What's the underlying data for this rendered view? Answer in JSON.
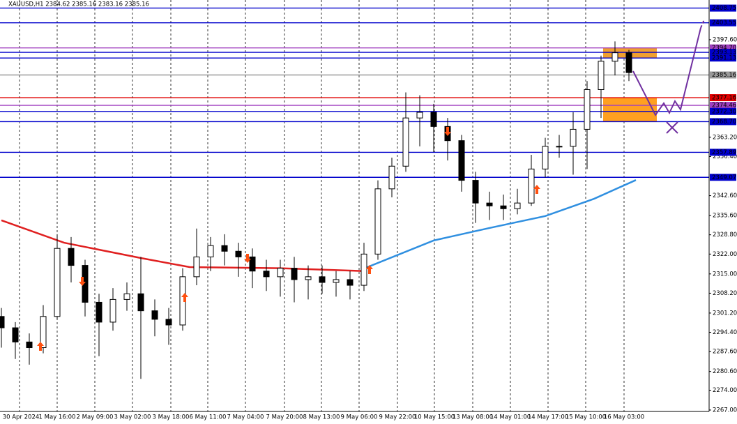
{
  "chart_data": {
    "type": "candlestick",
    "title": "XAUUSD,H1  2384.62 2385.16 2383.16 2385.16",
    "x": [
      0,
      1,
      2,
      3,
      4,
      5,
      6,
      7,
      8,
      9,
      10,
      11,
      12,
      13,
      14,
      15,
      16,
      17,
      18,
      19,
      20,
      21,
      22,
      23,
      24,
      25,
      26,
      27,
      28,
      29,
      30,
      31,
      32,
      33,
      34,
      35,
      36,
      37,
      38,
      39,
      40,
      41,
      42,
      43,
      44,
      45
    ],
    "open": [
      2300,
      2296,
      2291,
      2289,
      2300,
      2324,
      2318,
      2305,
      2298,
      2306,
      2308,
      2302,
      2299,
      2297,
      2314,
      2321,
      2325,
      2323,
      2321,
      2316,
      2314,
      2317,
      2313,
      2314,
      2312,
      2313,
      2311,
      2322,
      2345,
      2353,
      2370,
      2372,
      2367,
      2362,
      2348,
      2340,
      2339,
      2338,
      2340,
      2352,
      2360,
      2360,
      2366,
      2380,
      2390,
      2393
    ],
    "high": [
      2303,
      2298,
      2294,
      2304,
      2329,
      2328,
      2320,
      2308,
      2310,
      2312,
      2321,
      2306,
      2303,
      2317,
      2331,
      2328,
      2329,
      2326,
      2324,
      2320,
      2320,
      2321,
      2318,
      2318,
      2316,
      2316,
      2326,
      2348,
      2356,
      2379,
      2378,
      2375,
      2370,
      2364,
      2351,
      2344,
      2343,
      2345,
      2357,
      2363,
      2364,
      2372,
      2383,
      2392,
      2397,
      2394
    ],
    "low": [
      2289,
      2285,
      2283,
      2287,
      2299,
      2312,
      2300,
      2286,
      2295,
      2302,
      2278,
      2293,
      2290,
      2295,
      2311,
      2316,
      2318,
      2314,
      2310,
      2309,
      2307,
      2305,
      2306,
      2308,
      2307,
      2306,
      2309,
      2320,
      2342,
      2351,
      2360,
      2358,
      2355,
      2344,
      2333,
      2334,
      2334,
      2336,
      2339,
      2349,
      2356,
      2350,
      2352,
      2370,
      2385,
      2383
    ],
    "close": [
      2296,
      2291,
      2289,
      2300,
      2324,
      2318,
      2305,
      2298,
      2306,
      2308,
      2302,
      2299,
      2297,
      2314,
      2321,
      2325,
      2323,
      2321,
      2316,
      2314,
      2317,
      2313,
      2314,
      2312,
      2313,
      2311,
      2322,
      2345,
      2353,
      2370,
      2372,
      2367,
      2362,
      2348,
      2340,
      2339,
      2338,
      2340,
      2352,
      2360,
      2360,
      2366,
      2380,
      2390,
      2393,
      2386
    ],
    "up_color": "#ffffff",
    "down_color": "#000000",
    "xlim": [
      -0.1,
      50.75
    ],
    "ylim": [
      2266.5,
      2411.6
    ],
    "grid": "x",
    "xticks": [
      {
        "value": 1.3,
        "label": "30 Apr 2024"
      },
      {
        "value": 4.0,
        "label": "1 May 16:00"
      },
      {
        "value": 6.7,
        "label": "2 May 09:00"
      },
      {
        "value": 9.4,
        "label": "3 May 02:00"
      },
      {
        "value": 12.15,
        "label": "3 May 18:00"
      },
      {
        "value": 14.8,
        "label": "6 May 11:00"
      },
      {
        "value": 17.5,
        "label": "7 May 04:00"
      },
      {
        "value": 20.3,
        "label": "7 May 20:00"
      },
      {
        "value": 22.95,
        "label": "8 May 13:00"
      },
      {
        "value": 25.65,
        "label": "9 May 06:00"
      },
      {
        "value": 28.4,
        "label": "9 May 22:00"
      },
      {
        "value": 31.05,
        "label": "10 May 15:00"
      },
      {
        "value": 33.8,
        "label": "13 May 08:00"
      },
      {
        "value": 36.5,
        "label": "14 May 01:00"
      },
      {
        "value": 39.2,
        "label": "14 May 17:00"
      },
      {
        "value": 41.9,
        "label": "15 May 10:00"
      },
      {
        "value": 44.65,
        "label": "16 May 03:00"
      }
    ],
    "yticks": [
      {
        "value": 2397.6,
        "label": "2397.60"
      },
      {
        "value": 2363.2,
        "label": "2363.20"
      },
      {
        "value": 2356.4,
        "label": "2356.40"
      },
      {
        "value": 2342.6,
        "label": "2342.60"
      },
      {
        "value": 2335.6,
        "label": "2335.60"
      },
      {
        "value": 2328.8,
        "label": "2328.80"
      },
      {
        "value": 2322.0,
        "label": "2322.00"
      },
      {
        "value": 2315.0,
        "label": "2315.00"
      },
      {
        "value": 2308.2,
        "label": "2308.20"
      },
      {
        "value": 2301.2,
        "label": "2301.20"
      },
      {
        "value": 2294.4,
        "label": "2294.40"
      },
      {
        "value": 2287.6,
        "label": "2287.60"
      },
      {
        "value": 2280.6,
        "label": "2280.60"
      },
      {
        "value": 2274.0,
        "label": "2274.00"
      },
      {
        "value": 2267.0,
        "label": "2267.00"
      }
    ],
    "levels": [
      {
        "value": 2408.75,
        "color": "#0000cc"
      },
      {
        "value": 2403.55,
        "color": "#0000cc"
      },
      {
        "value": 2394.7,
        "label": "2394.70",
        "color": "#a040c0"
      },
      {
        "value": 2393.13,
        "color": "#0000cc"
      },
      {
        "value": 2391.13,
        "color": "#0000cc"
      },
      {
        "value": 2385.16,
        "color": "#999999"
      },
      {
        "value": 2377.16,
        "color": "#e00000"
      },
      {
        "value": 2374.46,
        "color": "#a040c0"
      },
      {
        "value": 2372.3,
        "label": "2372.30",
        "color": "#0000cc"
      },
      {
        "value": 2368.7,
        "label": "2368.70",
        "color": "#0000cc"
      },
      {
        "value": 2357.89,
        "color": "#0000cc"
      },
      {
        "value": 2349.07,
        "color": "#0000cc"
      }
    ],
    "zones": [
      {
        "from": 2391.13,
        "to": 2394.7,
        "x": [
          43.15,
          47.0
        ],
        "color": "#f0a030"
      },
      {
        "from": 2368.7,
        "to": 2377.16,
        "x": [
          43.15,
          47.0
        ],
        "color": "#ffa020"
      }
    ],
    "lines": [
      {
        "color": "#e02020",
        "x": [
          0,
          4.5,
          10,
          13.5,
          20,
          26
        ],
        "values": [
          2333.9,
          2326,
          2320.6,
          2317.4,
          2317,
          2316
        ]
      },
      {
        "color": "#2f8fe0",
        "x": [
          26,
          31,
          35,
          39,
          42.5,
          45.5
        ],
        "values": [
          2316.9,
          2326.8,
          2331.2,
          2335.4,
          2341.5,
          2348.1
        ]
      }
    ]
  }
}
